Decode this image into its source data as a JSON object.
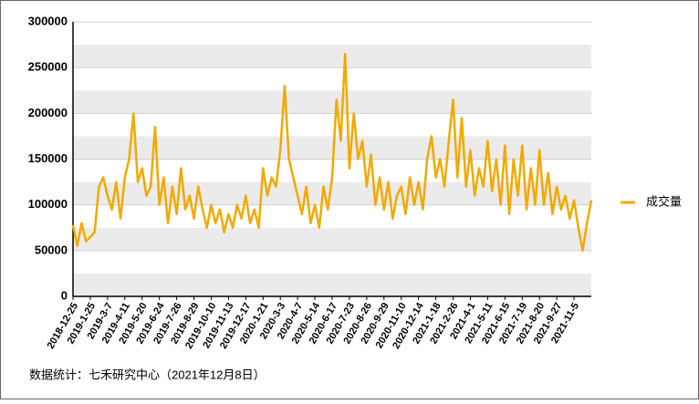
{
  "chart_data": {
    "type": "line",
    "categories": [
      "2018-12-25",
      null,
      null,
      null,
      "2019-1-25",
      null,
      null,
      null,
      "2019-3-7",
      null,
      null,
      null,
      "2019-4-11",
      null,
      null,
      null,
      "2019-5-20",
      null,
      null,
      null,
      "2019-6-24",
      null,
      null,
      null,
      "2019-7-26",
      null,
      null,
      null,
      "2019-8-29",
      null,
      null,
      null,
      "2019-10-10",
      null,
      null,
      null,
      "2019-11-13",
      null,
      null,
      null,
      "2019-12-17",
      null,
      null,
      null,
      "2020-1-21",
      null,
      null,
      null,
      "2020-3-3",
      null,
      null,
      null,
      "2020-4-7",
      null,
      null,
      null,
      "2020-5-14",
      null,
      null,
      null,
      "2020-6-17",
      null,
      null,
      null,
      "2020-7-23",
      null,
      null,
      null,
      "2020-8-26",
      null,
      null,
      null,
      "2020-9-29",
      null,
      null,
      null,
      "2020-11-10",
      null,
      null,
      null,
      "2020-12-14",
      null,
      null,
      null,
      "2021-1-18",
      null,
      null,
      null,
      "2021-2-26",
      null,
      null,
      null,
      "2021-4-1",
      null,
      null,
      null,
      "2021-5-11",
      null,
      null,
      null,
      "2021-6-15",
      null,
      null,
      null,
      "2021-7-19",
      null,
      null,
      null,
      "2021-8-20",
      null,
      null,
      null,
      "2021-9-27",
      null,
      null,
      null,
      "2021-11-5",
      null,
      null,
      null,
      null
    ],
    "series": [
      {
        "name": "成交量",
        "color": "#f2a900",
        "values": [
          78000,
          55000,
          80000,
          60000,
          65000,
          70000,
          120000,
          130000,
          110000,
          95000,
          125000,
          85000,
          130000,
          150000,
          200000,
          125000,
          140000,
          110000,
          120000,
          185000,
          100000,
          130000,
          80000,
          120000,
          90000,
          140000,
          95000,
          110000,
          85000,
          120000,
          95000,
          75000,
          100000,
          80000,
          95000,
          70000,
          90000,
          75000,
          100000,
          85000,
          110000,
          80000,
          95000,
          75000,
          140000,
          110000,
          130000,
          120000,
          160000,
          230000,
          150000,
          130000,
          110000,
          90000,
          120000,
          80000,
          100000,
          75000,
          120000,
          95000,
          130000,
          215000,
          170000,
          265000,
          140000,
          200000,
          150000,
          170000,
          120000,
          155000,
          100000,
          130000,
          95000,
          125000,
          85000,
          110000,
          120000,
          90000,
          130000,
          100000,
          125000,
          95000,
          150000,
          175000,
          130000,
          150000,
          120000,
          170000,
          215000,
          130000,
          195000,
          120000,
          160000,
          110000,
          140000,
          120000,
          170000,
          115000,
          150000,
          100000,
          165000,
          90000,
          150000,
          110000,
          165000,
          95000,
          140000,
          100000,
          160000,
          100000,
          135000,
          90000,
          120000,
          95000,
          110000,
          85000,
          105000,
          75000,
          50000,
          80000,
          105000
        ]
      }
    ],
    "ylim": [
      0,
      300000
    ],
    "yticks": [
      0,
      50000,
      100000,
      150000,
      200000,
      250000,
      300000
    ],
    "grid": true
  },
  "footer": "数据统计：七禾研究中心（2021年12月8日）"
}
